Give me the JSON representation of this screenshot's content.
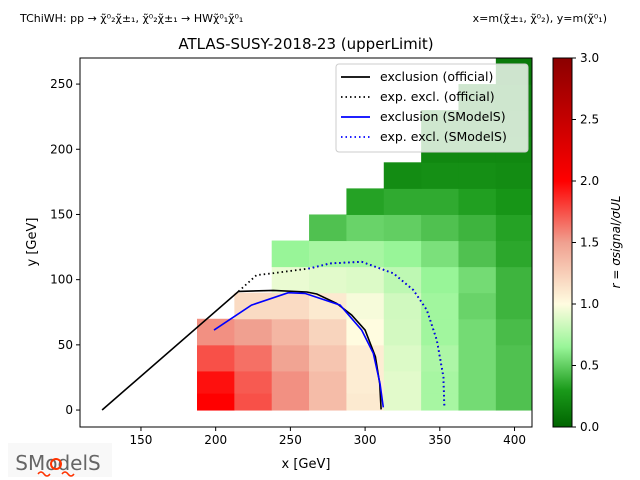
{
  "header": {
    "left": "TChiWH: pp → χ̃⁰₂χ̃±₁, χ̃⁰₂χ̃±₁ → HWχ̃⁰₁χ̃⁰₁",
    "right": "x=m(χ̃±₁, χ̃⁰₂), y=m(χ̃⁰₁)"
  },
  "logo": {
    "text": "SModelS"
  },
  "chart_data": {
    "type": "heatmap",
    "title": "ATLAS-SUSY-2018-23 (upperLimit)",
    "xlabel": "x [GeV]",
    "ylabel": "y [GeV]",
    "xlim": [
      109.2,
      411.7
    ],
    "ylim": [
      -13,
      270
    ],
    "xticks": [
      150,
      200,
      250,
      300,
      350,
      400
    ],
    "yticks": [
      0,
      50,
      100,
      150,
      200,
      250
    ],
    "colorbar": {
      "label": "r = σsignal/σUL",
      "range": [
        0,
        3
      ],
      "ticks": [
        "0.0",
        "0.5",
        "1.0",
        "1.5",
        "2.0",
        "2.5",
        "3.0"
      ],
      "stops": [
        [
          0,
          "#006400"
        ],
        [
          0.3,
          "#1a9a1a"
        ],
        [
          0.65,
          "#98f598"
        ],
        [
          1.0,
          "#fffce0"
        ],
        [
          1.5,
          "#f0a090"
        ],
        [
          2.0,
          "#ff0000"
        ],
        [
          3.0,
          "#8b0000"
        ]
      ]
    },
    "grid": false,
    "legend_position": "top-right",
    "heatmap": {
      "x_edges": [
        187.5,
        212.5,
        237.5,
        262.5,
        287.5,
        312.5,
        337.5,
        362.5,
        387.5,
        412.5
      ],
      "rows": [
        {
          "y": [
            0,
            13
          ],
          "start_col": 0,
          "values": [
            2.0,
            1.75,
            1.55,
            1.35,
            1.1,
            0.9,
            0.7,
            0.55,
            0.45
          ]
        },
        {
          "y": [
            13,
            30
          ],
          "start_col": 0,
          "values": [
            1.95,
            1.72,
            1.55,
            1.35,
            1.08,
            0.9,
            0.7,
            0.55,
            0.45
          ]
        },
        {
          "y": [
            30,
            50
          ],
          "start_col": 0,
          "values": [
            1.75,
            1.65,
            1.48,
            1.3,
            1.08,
            0.88,
            0.72,
            0.55,
            0.45
          ]
        },
        {
          "y": [
            50,
            70
          ],
          "start_col": 0,
          "values": [
            1.55,
            1.5,
            1.38,
            1.22,
            1.0,
            0.85,
            0.68,
            0.55,
            0.43
          ]
        },
        {
          "y": [
            70,
            90
          ],
          "start_col": 1,
          "values": [
            1.18,
            1.18,
            1.1,
            0.97,
            0.84,
            0.68,
            0.52,
            0.4
          ]
        },
        {
          "y": [
            90,
            110
          ],
          "start_col": 2,
          "values": [
            0.93,
            0.9,
            0.88,
            0.78,
            0.65,
            0.55,
            0.4
          ]
        },
        {
          "y": [
            110,
            130
          ],
          "start_col": 2,
          "values": [
            0.65,
            0.7,
            0.7,
            0.65,
            0.57,
            0.45,
            0.35
          ]
        },
        {
          "y": [
            130,
            150
          ],
          "start_col": 3,
          "values": [
            0.45,
            0.52,
            0.5,
            0.45,
            0.4,
            0.33
          ]
        },
        {
          "y": [
            150,
            170
          ],
          "start_col": 4,
          "values": [
            0.33,
            0.36,
            0.36,
            0.32,
            0.27
          ]
        },
        {
          "y": [
            170,
            190
          ],
          "start_col": 5,
          "values": [
            0.22,
            0.24,
            0.24,
            0.22
          ]
        },
        {
          "y": [
            190,
            210
          ],
          "start_col": 6,
          "values": [
            0.2,
            0.2,
            0.2
          ]
        },
        {
          "y": [
            210,
            230
          ],
          "start_col": 6,
          "values": [
            0.2,
            0.18,
            0.18
          ]
        },
        {
          "y": [
            230,
            250
          ],
          "start_col": 7,
          "values": [
            0.17,
            0.16
          ]
        },
        {
          "y": [
            250,
            270
          ],
          "start_col": 8,
          "values": [
            0.12
          ]
        }
      ]
    },
    "series": [
      {
        "name": "exclusion (official)",
        "color": "#000000",
        "style": "solid",
        "points": [
          [
            124,
            0
          ],
          [
            215.3,
            91
          ],
          [
            238.6,
            91.8
          ],
          [
            261,
            90.5
          ],
          [
            267.7,
            89
          ],
          [
            281,
            81.8
          ],
          [
            291,
            72.9
          ],
          [
            300,
            61.3
          ],
          [
            306.9,
            40.9
          ],
          [
            309.8,
            20.4
          ],
          [
            310.7,
            0.5
          ]
        ]
      },
      {
        "name": "exp. excl. (official)",
        "color": "#000000",
        "style": "dotted",
        "points": [
          [
            215.3,
            91
          ],
          [
            227.4,
            103.5
          ],
          [
            237.5,
            104.8
          ],
          [
            263.5,
            108.7
          ],
          [
            276.5,
            112.5
          ],
          [
            297.7,
            113.7
          ],
          [
            319,
            104.8
          ],
          [
            332.3,
            92
          ],
          [
            341.3,
            76.7
          ],
          [
            348,
            53.7
          ],
          [
            352.4,
            25.5
          ],
          [
            353.1,
            1.3
          ]
        ]
      },
      {
        "name": "exclusion (SModelS)",
        "color": "#0000ff",
        "style": "solid",
        "points": [
          [
            198.9,
            61.3
          ],
          [
            224,
            80.5
          ],
          [
            248.6,
            90
          ],
          [
            259.8,
            89.5
          ],
          [
            283.3,
            80.5
          ],
          [
            297.7,
            61.3
          ],
          [
            305.5,
            43.5
          ],
          [
            310,
            20.4
          ],
          [
            312.2,
            2
          ]
        ]
      },
      {
        "name": "exp. excl. (SModelS)",
        "color": "#0000ff",
        "style": "dotted",
        "points": [
          [
            262,
            108.5
          ],
          [
            276.5,
            112.5
          ],
          [
            297.7,
            113.7
          ],
          [
            319,
            104.8
          ],
          [
            332.3,
            92
          ],
          [
            341.3,
            76.7
          ],
          [
            348,
            53.7
          ],
          [
            352.4,
            25.5
          ],
          [
            353.1,
            1.3
          ]
        ]
      }
    ]
  }
}
